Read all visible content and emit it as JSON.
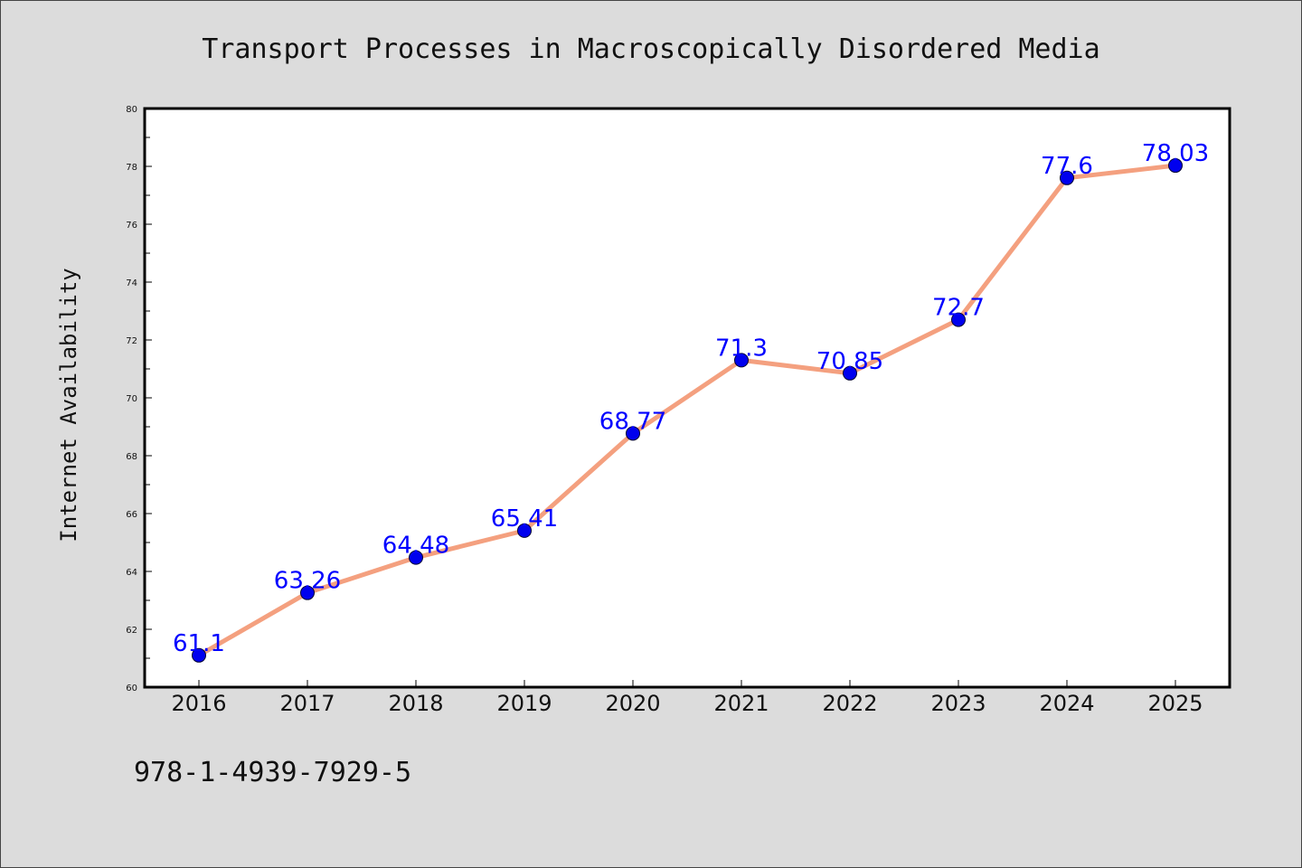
{
  "chart_data": {
    "type": "line",
    "title": "Transport Processes in Macroscopically Disordered Media",
    "xlabel": "",
    "ylabel": "Internet Availability",
    "categories": [
      "2016",
      "2017",
      "2018",
      "2019",
      "2020",
      "2021",
      "2022",
      "2023",
      "2024",
      "2025"
    ],
    "series": [
      {
        "values": [
          61.1,
          63.26,
          64.48,
          65.41,
          68.77,
          71.3,
          70.85,
          72.7,
          77.6,
          78.03
        ],
        "labels": [
          "61.1",
          "63.26",
          "64.48",
          "65.41",
          "68.77",
          "71.3",
          "70.85",
          "72.7",
          "77.6",
          "78.03"
        ],
        "line_color": "#f4a07f",
        "marker_color": "#0000ee",
        "label_color": "#0000ff"
      }
    ],
    "ylim": [
      60,
      80
    ],
    "yticks": [
      "60",
      "62",
      "64",
      "66",
      "68",
      "70",
      "72",
      "74",
      "76",
      "78",
      "80"
    ],
    "grid": false,
    "legend": "none"
  },
  "footer": {
    "isbn": "978-1-4939-7929-5"
  }
}
